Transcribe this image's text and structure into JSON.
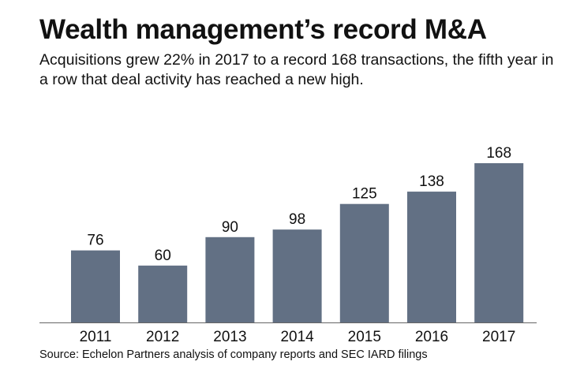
{
  "title": "Wealth management’s record M&A",
  "subtitle": "Acquisitions grew 22% in 2017 to a record 168 transactions, the fifth year in a row that deal activity has reached a new high.",
  "source": "Source: Echelon Partners analysis of company reports and SEC IARD filings",
  "chart_data": {
    "type": "bar",
    "title": "Wealth management’s record M&A",
    "xlabel": "",
    "ylabel": "",
    "categories": [
      "2011",
      "2012",
      "2013",
      "2014",
      "2015",
      "2016",
      "2017"
    ],
    "values": [
      76,
      60,
      90,
      98,
      125,
      138,
      168
    ],
    "ylim": [
      0,
      168
    ],
    "grid": false,
    "data_labels": true,
    "bar_color": "#627084"
  }
}
